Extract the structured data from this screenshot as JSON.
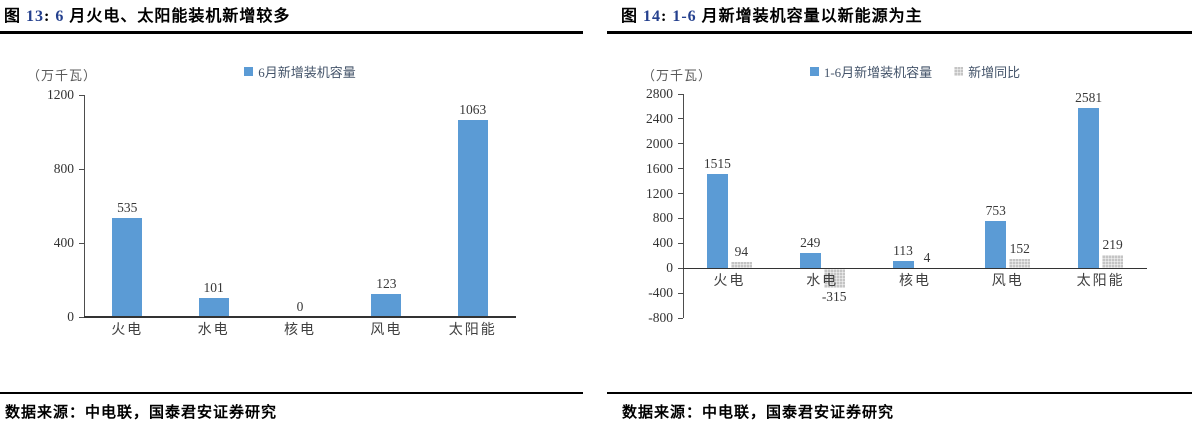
{
  "colors": {
    "bar_blue": "#5B9BD5",
    "bar_gray": "#BFBFBF",
    "title_number_blue": "#24408E",
    "legend_text": "#44546A",
    "axis_line": "#4D4D4D"
  },
  "chart_data": [
    {
      "type": "bar",
      "title": "图 13:  6 月火电、太阳能装机新增较多",
      "title_segments": [
        {
          "text": "图 ",
          "color": "#000000"
        },
        {
          "text": "13",
          "color": "#24408E"
        },
        {
          "text": ":  ",
          "color": "#000000"
        },
        {
          "text": "6",
          "color": "#24408E"
        },
        {
          "text": " 月火电、太阳能装机新增较多",
          "color": "#000000"
        }
      ],
      "unit_label": "（万千瓦）",
      "categories": [
        "火电",
        "水电",
        "核电",
        "风电",
        "太阳能"
      ],
      "series": [
        {
          "name": "6月新增装机容量",
          "color": "#5B9BD5",
          "pattern": false,
          "values": [
            535,
            101,
            0,
            123,
            1063
          ]
        }
      ],
      "ylim": [
        0,
        1200
      ],
      "ytick_step": 400,
      "grid": false,
      "legend_position": "top-center",
      "source": "数据来源：中电联，国泰君安证券研究"
    },
    {
      "type": "bar",
      "title": "图 14:  1-6 月新增装机容量以新能源为主",
      "title_segments": [
        {
          "text": "图 ",
          "color": "#000000"
        },
        {
          "text": "14",
          "color": "#24408E"
        },
        {
          "text": ":  ",
          "color": "#000000"
        },
        {
          "text": "1-6",
          "color": "#24408E"
        },
        {
          "text": " 月新增装机容量以新能源为主",
          "color": "#000000"
        }
      ],
      "unit_label": "（万千瓦）",
      "categories": [
        "火电",
        "水电",
        "核电",
        "风电",
        "太阳能"
      ],
      "series": [
        {
          "name": "1-6月新增装机容量",
          "color": "#5B9BD5",
          "pattern": false,
          "values": [
            1515,
            249,
            113,
            753,
            2581
          ]
        },
        {
          "name": "新增同比",
          "color": "#BFBFBF",
          "pattern": true,
          "values": [
            94,
            -315,
            4,
            152,
            219
          ]
        }
      ],
      "ylim": [
        -800,
        2800
      ],
      "ytick_step": 400,
      "grid": false,
      "legend_position": "top-center",
      "source": "数据来源：中电联，国泰君安证券研究"
    }
  ]
}
